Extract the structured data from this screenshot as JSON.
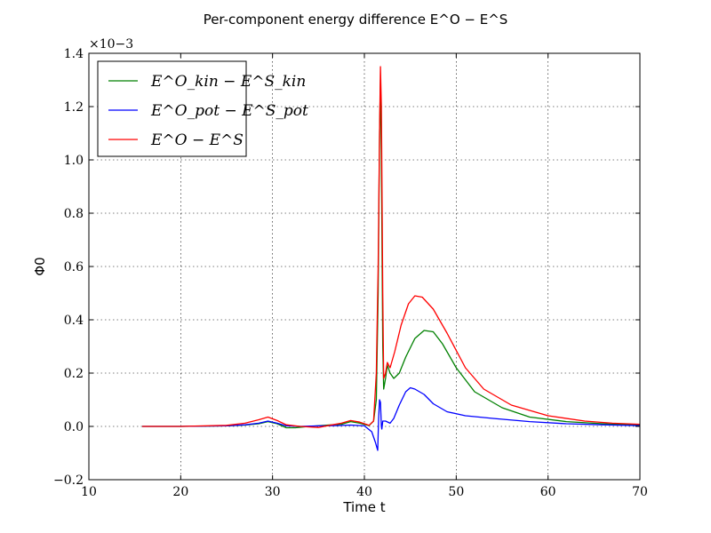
{
  "chart_data": {
    "type": "line",
    "title": "Per-component energy difference E^O − E^S",
    "xlabel": "Time t",
    "ylabel": "Φ0",
    "y_scale_factor": "×10−3",
    "xlim": [
      10,
      70
    ],
    "ylim": [
      -0.2,
      1.4
    ],
    "xticks": [
      "10",
      "20",
      "30",
      "40",
      "50",
      "60",
      "70"
    ],
    "yticks": [
      "−0.2",
      "0.0",
      "0.2",
      "0.4",
      "0.6",
      "0.8",
      "1.0",
      "1.2",
      "1.4"
    ],
    "grid": true,
    "legend_position": "top-left",
    "series": [
      {
        "name": "E^O_kin − E^S_kin",
        "color": "#008000",
        "points": [
          [
            15.8,
            0.0
          ],
          [
            20,
            0.0
          ],
          [
            25,
            0.002
          ],
          [
            27,
            0.005
          ],
          [
            28.5,
            0.01
          ],
          [
            29.5,
            0.018
          ],
          [
            30.5,
            0.01
          ],
          [
            31.5,
            -0.005
          ],
          [
            32.5,
            -0.005
          ],
          [
            34,
            0.0
          ],
          [
            36,
            0.005
          ],
          [
            37.5,
            0.008
          ],
          [
            38.5,
            0.018
          ],
          [
            39.5,
            0.012
          ],
          [
            40.5,
            0.003
          ],
          [
            41,
            0.02
          ],
          [
            41.3,
            0.1
          ],
          [
            41.5,
            0.5
          ],
          [
            41.65,
            1.1
          ],
          [
            41.75,
            1.3
          ],
          [
            41.85,
            1.0
          ],
          [
            42.0,
            0.3
          ],
          [
            42.1,
            0.14
          ],
          [
            42.3,
            0.18
          ],
          [
            42.5,
            0.23
          ],
          [
            42.8,
            0.2
          ],
          [
            43.2,
            0.18
          ],
          [
            43.8,
            0.2
          ],
          [
            44.5,
            0.26
          ],
          [
            45.5,
            0.33
          ],
          [
            46.5,
            0.36
          ],
          [
            47.5,
            0.355
          ],
          [
            48.5,
            0.31
          ],
          [
            50,
            0.22
          ],
          [
            52,
            0.13
          ],
          [
            55,
            0.07
          ],
          [
            58,
            0.035
          ],
          [
            62,
            0.018
          ],
          [
            66,
            0.01
          ],
          [
            70,
            0.005
          ]
        ]
      },
      {
        "name": "E^O_pot − E^S_pot",
        "color": "#0000ff",
        "points": [
          [
            15.8,
            0.0
          ],
          [
            20,
            0.0
          ],
          [
            25,
            0.002
          ],
          [
            27,
            0.006
          ],
          [
            28.5,
            0.012
          ],
          [
            29.5,
            0.02
          ],
          [
            30.5,
            0.012
          ],
          [
            31.5,
            0.002
          ],
          [
            33,
            0.0
          ],
          [
            35,
            0.002
          ],
          [
            37,
            0.003
          ],
          [
            38.5,
            0.005
          ],
          [
            40,
            0.002
          ],
          [
            40.8,
            -0.02
          ],
          [
            41.2,
            -0.06
          ],
          [
            41.45,
            -0.09
          ],
          [
            41.55,
            0.03
          ],
          [
            41.65,
            0.1
          ],
          [
            41.75,
            0.09
          ],
          [
            41.85,
            0.0
          ],
          [
            41.9,
            -0.01
          ],
          [
            42.0,
            0.02
          ],
          [
            42.3,
            0.02
          ],
          [
            42.8,
            0.012
          ],
          [
            43.2,
            0.03
          ],
          [
            43.8,
            0.08
          ],
          [
            44.5,
            0.13
          ],
          [
            45.0,
            0.145
          ],
          [
            45.5,
            0.14
          ],
          [
            46.5,
            0.12
          ],
          [
            47.5,
            0.085
          ],
          [
            49,
            0.055
          ],
          [
            51,
            0.04
          ],
          [
            54,
            0.03
          ],
          [
            58,
            0.018
          ],
          [
            62,
            0.01
          ],
          [
            66,
            0.006
          ],
          [
            70,
            0.003
          ]
        ]
      },
      {
        "name": "E^O − E^S",
        "color": "#ff0000",
        "points": [
          [
            15.8,
            0.0
          ],
          [
            20,
            0.0
          ],
          [
            25,
            0.004
          ],
          [
            27,
            0.012
          ],
          [
            28.5,
            0.025
          ],
          [
            29.5,
            0.035
          ],
          [
            30.5,
            0.022
          ],
          [
            31.5,
            0.006
          ],
          [
            33,
            0.0
          ],
          [
            35,
            -0.004
          ],
          [
            36.5,
            0.006
          ],
          [
            37.5,
            0.012
          ],
          [
            38.5,
            0.022
          ],
          [
            39.5,
            0.016
          ],
          [
            40.5,
            0.004
          ],
          [
            41,
            0.02
          ],
          [
            41.3,
            0.2
          ],
          [
            41.5,
            0.6
          ],
          [
            41.65,
            1.1
          ],
          [
            41.75,
            1.35
          ],
          [
            41.85,
            1.2
          ],
          [
            42.0,
            0.5
          ],
          [
            42.1,
            0.18
          ],
          [
            42.3,
            0.2
          ],
          [
            42.5,
            0.24
          ],
          [
            42.8,
            0.22
          ],
          [
            43.3,
            0.28
          ],
          [
            44,
            0.38
          ],
          [
            44.8,
            0.46
          ],
          [
            45.5,
            0.49
          ],
          [
            46.3,
            0.485
          ],
          [
            47.5,
            0.44
          ],
          [
            49,
            0.35
          ],
          [
            51,
            0.22
          ],
          [
            53,
            0.14
          ],
          [
            56,
            0.08
          ],
          [
            60,
            0.04
          ],
          [
            64,
            0.02
          ],
          [
            67,
            0.012
          ],
          [
            70,
            0.008
          ]
        ]
      }
    ]
  }
}
